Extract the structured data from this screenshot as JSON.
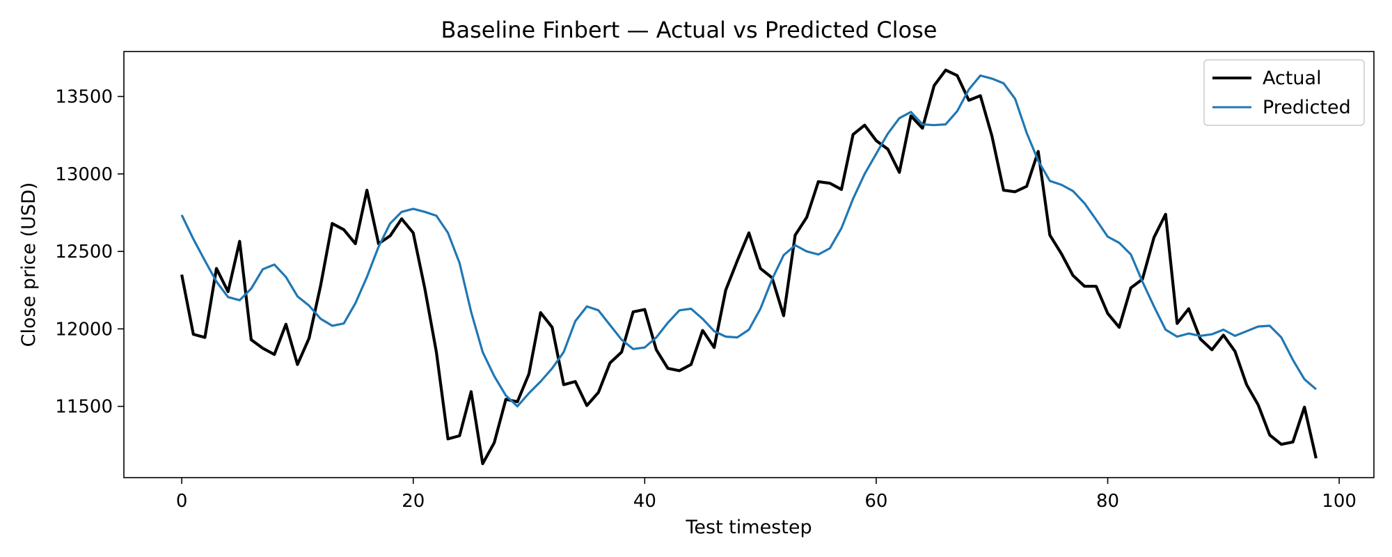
{
  "chart_data": {
    "type": "line",
    "title": "Baseline Finbert — Actual vs Predicted Close",
    "xlabel": "Test timestep",
    "ylabel": "Close price (USD)",
    "xlim": [
      -5,
      103
    ],
    "ylim": [
      11040,
      13790
    ],
    "xticks": [
      0,
      20,
      40,
      60,
      80,
      100
    ],
    "yticks": [
      11500,
      12000,
      12500,
      13000,
      13500
    ],
    "grid": false,
    "legend_position": "top-right",
    "series": [
      {
        "name": "Actual",
        "color": "#000000",
        "x_start": 0,
        "values": [
          12350,
          11965,
          11945,
          12390,
          12240,
          12565,
          11930,
          11875,
          11835,
          12030,
          11770,
          11940,
          12280,
          12680,
          12640,
          12550,
          12895,
          12550,
          12600,
          12710,
          12620,
          12260,
          11850,
          11290,
          11310,
          11595,
          11130,
          11265,
          11545,
          11530,
          11710,
          12105,
          12010,
          11640,
          11660,
          11505,
          11590,
          11780,
          11850,
          12110,
          12125,
          11865,
          11745,
          11730,
          11770,
          11990,
          11880,
          12250,
          12440,
          12620,
          12390,
          12330,
          12085,
          12605,
          12720,
          12950,
          12940,
          12900,
          13255,
          13315,
          13215,
          13160,
          13010,
          13375,
          13295,
          13570,
          13670,
          13635,
          13475,
          13505,
          13245,
          12895,
          12885,
          12920,
          13145,
          12605,
          12485,
          12345,
          12275,
          12275,
          12100,
          12010,
          12265,
          12320,
          12590,
          12740,
          12035,
          12130,
          11935,
          11865,
          11960,
          11855,
          11640,
          11510,
          11315,
          11255,
          11270,
          11495,
          11165
        ]
      },
      {
        "name": "Predicted",
        "color": "#1f77b4",
        "x_start": 0,
        "values": [
          12735,
          12580,
          12440,
          12305,
          12205,
          12185,
          12260,
          12385,
          12415,
          12335,
          12210,
          12150,
          12065,
          12020,
          12035,
          12165,
          12335,
          12530,
          12680,
          12755,
          12775,
          12755,
          12730,
          12620,
          12425,
          12110,
          11850,
          11695,
          11570,
          11500,
          11585,
          11660,
          11745,
          11850,
          12050,
          12145,
          12120,
          12025,
          11930,
          11870,
          11880,
          11945,
          12040,
          12120,
          12130,
          12065,
          11985,
          11950,
          11945,
          11995,
          12130,
          12320,
          12475,
          12540,
          12500,
          12480,
          12520,
          12650,
          12840,
          13000,
          13130,
          13260,
          13360,
          13400,
          13320,
          13315,
          13320,
          13405,
          13545,
          13635,
          13615,
          13585,
          13485,
          13265,
          13085,
          12955,
          12930,
          12890,
          12810,
          12705,
          12595,
          12555,
          12480,
          12305,
          12145,
          11995,
          11950,
          11970,
          11955,
          11965,
          11995,
          11955,
          11985,
          12015,
          12020,
          11945,
          11800,
          11675,
          11610
        ]
      }
    ]
  }
}
